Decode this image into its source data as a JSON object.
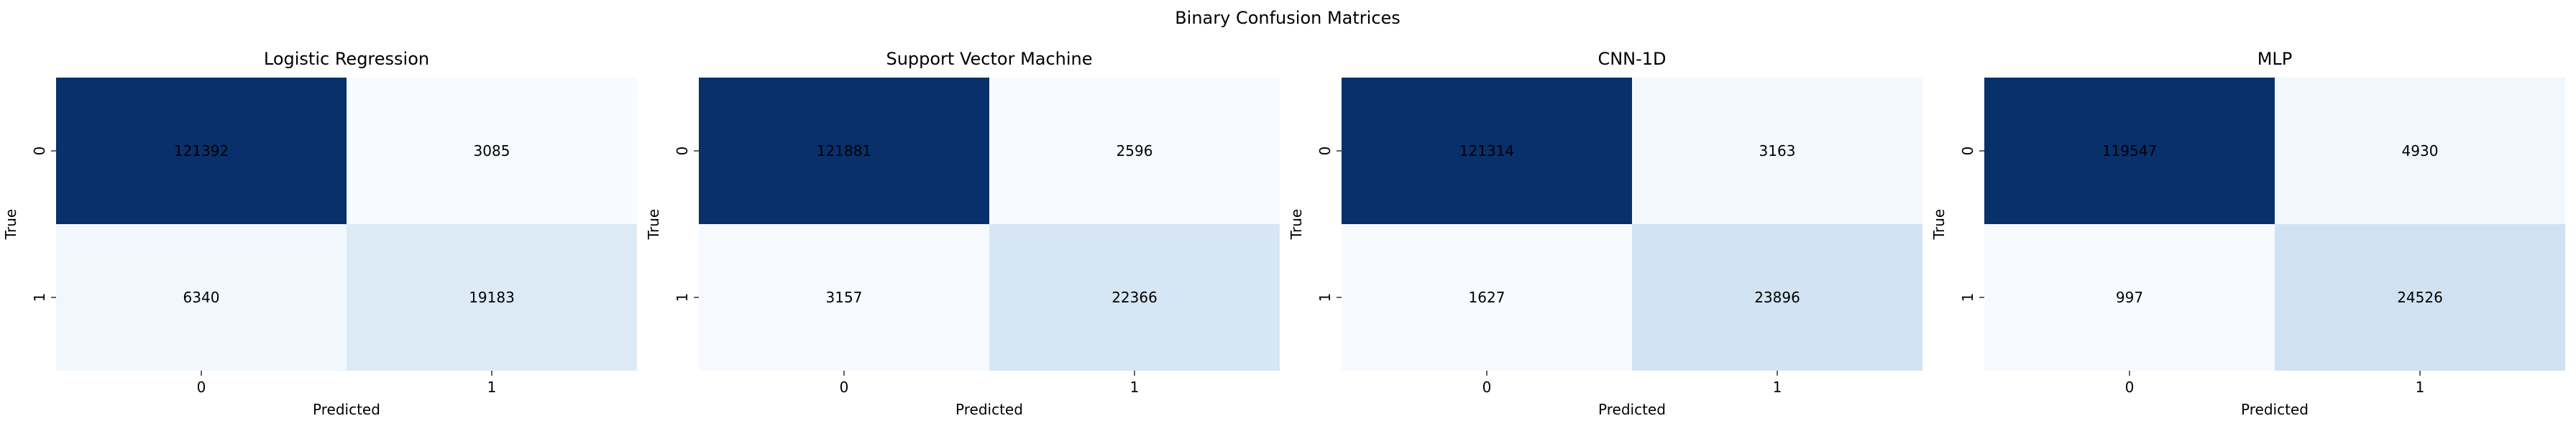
{
  "figure": {
    "suptitle": "Binary Confusion Matrices"
  },
  "chart_data": [
    {
      "type": "heatmap",
      "title": "Logistic Regression",
      "xlabel": "Predicted",
      "ylabel": "True",
      "x_ticklabels": [
        "0",
        "1"
      ],
      "y_ticklabels": [
        "0",
        "1"
      ],
      "matrix": [
        [
          121392,
          3085
        ],
        [
          6340,
          19183
        ]
      ],
      "colormap": "Blues",
      "colorbar": false,
      "annotations": true
    },
    {
      "type": "heatmap",
      "title": "Support Vector Machine",
      "xlabel": "Predicted",
      "ylabel": "True",
      "x_ticklabels": [
        "0",
        "1"
      ],
      "y_ticklabels": [
        "0",
        "1"
      ],
      "matrix": [
        [
          121881,
          2596
        ],
        [
          3157,
          22366
        ]
      ],
      "colormap": "Blues",
      "colorbar": false,
      "annotations": true
    },
    {
      "type": "heatmap",
      "title": "CNN-1D",
      "xlabel": "Predicted",
      "ylabel": "True",
      "x_ticklabels": [
        "0",
        "1"
      ],
      "y_ticklabels": [
        "0",
        "1"
      ],
      "matrix": [
        [
          121314,
          3163
        ],
        [
          1627,
          23896
        ]
      ],
      "colormap": "Blues",
      "colorbar": false,
      "annotations": true
    },
    {
      "type": "heatmap",
      "title": "MLP",
      "xlabel": "Predicted",
      "ylabel": "True",
      "x_ticklabels": [
        "0",
        "1"
      ],
      "y_ticklabels": [
        "0",
        "1"
      ],
      "matrix": [
        [
          119547,
          4930
        ],
        [
          997,
          24526
        ]
      ],
      "colormap": "Blues",
      "colorbar": false,
      "annotations": true
    }
  ]
}
